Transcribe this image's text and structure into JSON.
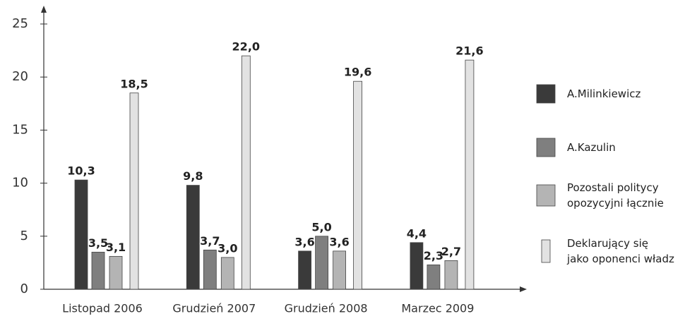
{
  "chart_data": {
    "type": "bar",
    "categories": [
      "Listopad 2006",
      "Grudzień 2007",
      "Grudzień 2008",
      "Marzec 2009"
    ],
    "series": [
      {
        "name": "A.Milinkiewicz",
        "color": "#3a3a3a",
        "values": [
          10.3,
          9.8,
          3.6,
          4.4
        ],
        "value_labels": [
          "10,3",
          "9,8",
          "3,6",
          "4,4"
        ]
      },
      {
        "name": "A.Kazulin",
        "color": "#7f7f7f",
        "values": [
          3.5,
          3.7,
          5.0,
          2.3
        ],
        "value_labels": [
          "3,5",
          "3,7",
          "5,0",
          "2,3"
        ]
      },
      {
        "name": "Pozostali politycy\nopozycyjni łącznie",
        "color": "#b4b4b4",
        "values": [
          3.1,
          3.0,
          3.6,
          2.7
        ],
        "value_labels": [
          "3,1",
          "3,0",
          "3,6",
          "2,7"
        ]
      },
      {
        "name": "Deklarujący się\njako oponenci władz",
        "color": "#e2e2e2",
        "values": [
          18.5,
          22.0,
          19.6,
          21.6
        ],
        "value_labels": [
          "18,5",
          "22,0",
          "19,6",
          "21,6"
        ]
      }
    ],
    "ylim": [
      0,
      25
    ],
    "yticks": [
      0,
      5,
      10,
      15,
      20,
      25
    ],
    "legend": "right"
  }
}
